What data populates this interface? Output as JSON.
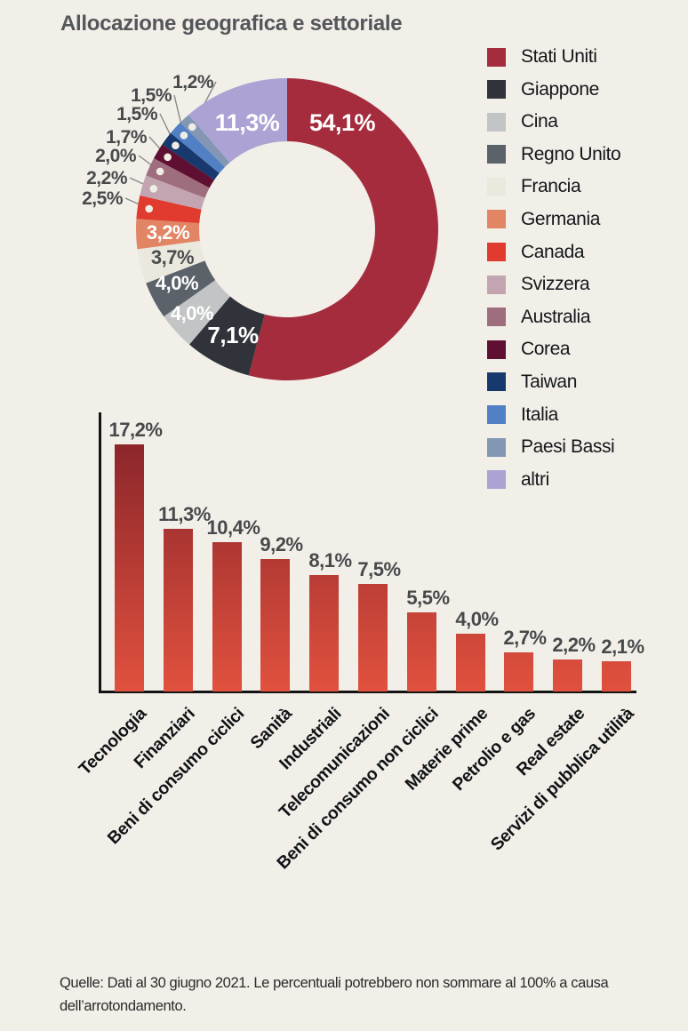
{
  "title": "Allocazione geografica e settoriale",
  "colors": {
    "background": "#F1EFE8",
    "axis": "#131313",
    "value_label_gray": "#48494B",
    "title_gray": "#55565A",
    "leader_line": "#8A8A8A",
    "leader_dot": "#EFEDE5"
  },
  "chart_data": [
    {
      "type": "pie",
      "subtype": "donut",
      "direction": "clockwise",
      "start_angle_deg": 0,
      "legend_position": "right",
      "unit": "%",
      "series": [
        {
          "label": "Stati Uniti",
          "value": 54.1,
          "display": "54,1%",
          "color": "#A52C3C"
        },
        {
          "label": "Giappone",
          "value": 7.1,
          "display": "7,1%",
          "color": "#30343A"
        },
        {
          "label": "Cina",
          "value": 4.0,
          "display": "4,0%",
          "color": "#C2C4C5"
        },
        {
          "label": "Regno Unito",
          "value": 4.0,
          "display": "4,0%",
          "color": "#5B626A"
        },
        {
          "label": "Francia",
          "value": 3.7,
          "display": "3,7%",
          "color": "#EBE8DE"
        },
        {
          "label": "Germania",
          "value": 3.2,
          "display": "3,2%",
          "color": "#E18564"
        },
        {
          "label": "Canada",
          "value": 2.5,
          "display": "2,5%",
          "color": "#E13B2F"
        },
        {
          "label": "Svizzera",
          "value": 2.2,
          "display": "2,2%",
          "color": "#C2A5B1"
        },
        {
          "label": "Australia",
          "value": 2.0,
          "display": "2,0%",
          "color": "#9E6E7E"
        },
        {
          "label": "Corea",
          "value": 1.7,
          "display": "1,7%",
          "color": "#5F0F31"
        },
        {
          "label": "Taiwan",
          "value": 1.5,
          "display": "1,5%",
          "color": "#17396E"
        },
        {
          "label": "Italia",
          "value": 1.5,
          "display": "1,5%",
          "color": "#5180C4"
        },
        {
          "label": "Paesi Bassi",
          "value": 1.2,
          "display": "1,2%",
          "color": "#8396B4"
        },
        {
          "label": "altri",
          "value": 11.3,
          "display": "11,3%",
          "color": "#ACA2D4"
        }
      ]
    },
    {
      "type": "bar",
      "unit": "%",
      "ylim": [
        0,
        18
      ],
      "grid": false,
      "categories": [
        "Tecnologia",
        "Finanziari",
        "Beni di consumo ciclici",
        "Sanità",
        "Industriali",
        "Telecomunicazioni",
        "Beni di consumo non ciclici",
        "Materie prime",
        "Petrolio e gas",
        "Real estate",
        "Servizi di pubblica utilità"
      ],
      "values": [
        17.2,
        11.3,
        10.4,
        9.2,
        8.1,
        7.5,
        5.5,
        4.0,
        2.7,
        2.2,
        2.1
      ],
      "display_values": [
        "17,2%",
        "11,3%",
        "10,4%",
        "9,2%",
        "8,1%",
        "7,5%",
        "5,5%",
        "4,0%",
        "2,7%",
        "2,2%",
        "2,1%"
      ],
      "bar_gradient_top": "#8C262B",
      "bar_gradient_bottom": "#E1513E"
    }
  ],
  "footer": {
    "text": "Quelle: Dati al 30 giugno 2021. Le percentuali potrebbero non sommare al 100% a causa\ndell’arrotondamento."
  }
}
